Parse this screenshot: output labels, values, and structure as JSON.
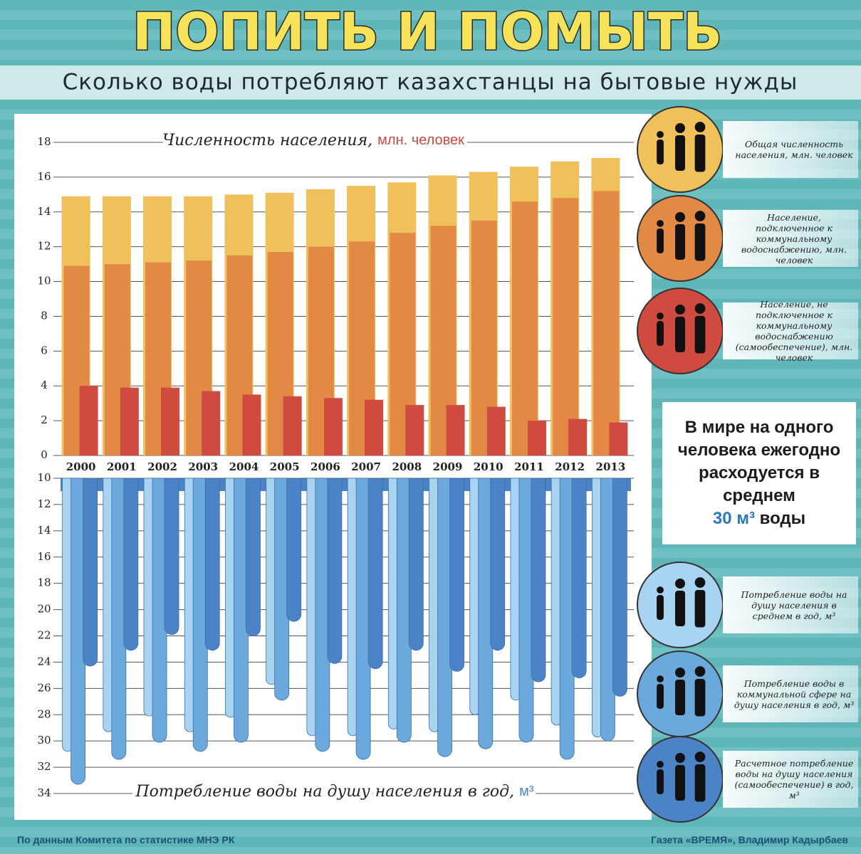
{
  "header": {
    "title": "ПОПИТЬ И ПОМЫТЬ",
    "subtitle": "Сколько воды потребляют казахстанцы на бытовые нужды"
  },
  "chart_data": [
    {
      "type": "bar",
      "title": "Численность населения,",
      "title_unit": "млн. человек",
      "categories": [
        "2000",
        "2001",
        "2002",
        "2003",
        "2004",
        "2005",
        "2006",
        "2007",
        "2008",
        "2009",
        "2010",
        "2011",
        "2012",
        "2013"
      ],
      "series": [
        {
          "name": "Общая численность населения, млн. человек",
          "color": "#f0c05a",
          "values": [
            14.9,
            14.9,
            14.9,
            14.9,
            15.0,
            15.1,
            15.3,
            15.5,
            15.7,
            16.1,
            16.3,
            16.6,
            16.9,
            17.1
          ]
        },
        {
          "name": "Население, подключенное к коммунальному водоснабжению, млн. человек",
          "color": "#e28a45",
          "values": [
            10.9,
            11.0,
            11.1,
            11.2,
            11.5,
            11.7,
            12.0,
            12.3,
            12.8,
            13.2,
            13.5,
            14.6,
            14.8,
            15.2
          ]
        },
        {
          "name": "Население, не подключенное к коммунальному водоснабжению (самообеспечение), млн. человек",
          "color": "#cf4a3f",
          "values": [
            4.0,
            3.9,
            3.9,
            3.7,
            3.5,
            3.4,
            3.3,
            3.2,
            2.9,
            2.9,
            2.8,
            2.0,
            2.1,
            1.9
          ]
        }
      ],
      "ylim": [
        0,
        18
      ],
      "yticks": [
        0,
        2,
        4,
        6,
        8,
        10,
        12,
        14,
        16,
        18
      ],
      "grid": true,
      "legend": "right"
    },
    {
      "type": "drip",
      "title": "Потребление воды на душу населения в год,",
      "title_unit": "м³",
      "series": [
        {
          "name": "Потребление воды на душу населения в среднем в год, м³",
          "color": "#a8d4f2",
          "values": [
            30.8,
            29.3,
            28.1,
            29.3,
            28.2,
            25.7,
            29.6,
            29.6,
            29.1,
            29.3,
            28.0,
            26.9,
            28.8,
            29.7
          ]
        },
        {
          "name": "Потребление воды в коммунальной сфере на душу населения в год, м³",
          "color": "#6ba9dd",
          "values": [
            33.3,
            31.4,
            30.1,
            30.8,
            30.1,
            26.9,
            30.8,
            31.4,
            30.1,
            31.2,
            30.6,
            30.1,
            31.4,
            30.0
          ]
        },
        {
          "name": "Расчетное потребление воды на душу населения (самообеспечение) в год, м³",
          "color": "#4c82c6",
          "values": [
            24.3,
            23.1,
            21.9,
            23.1,
            22.0,
            20.9,
            24.1,
            24.5,
            23.1,
            24.7,
            23.1,
            25.5,
            25.2,
            26.6
          ]
        }
      ],
      "ylim": [
        10,
        34
      ],
      "inverted": true,
      "yticks": [
        10,
        12,
        14,
        16,
        18,
        20,
        22,
        24,
        26,
        28,
        30,
        32,
        34
      ],
      "grid": true,
      "legend": "right"
    }
  ],
  "note": [
    "В мире на одного человека ежегодно расходуется в среднем",
    "30 м³",
    "воды"
  ],
  "footer": {
    "source": "По данным Комитета по статистике МНЭ РК",
    "credit": "Газета «ВРЕМЯ», Владимир Кадырбаев"
  }
}
